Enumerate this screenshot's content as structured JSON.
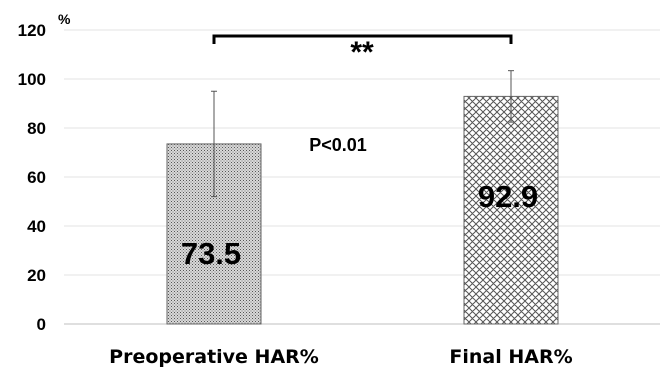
{
  "chart_data": {
    "type": "bar",
    "categories": [
      "Preoperative HAR%",
      "Final HAR%"
    ],
    "values": [
      73.5,
      92.9
    ],
    "error_bars": [
      21.5,
      10.5
    ],
    "value_labels": [
      "73.5",
      "92.9"
    ],
    "ylabel": "%",
    "ylim": [
      0,
      120
    ],
    "yticks": [
      0,
      20,
      40,
      60,
      80,
      100,
      120
    ],
    "grid": true,
    "annotations": {
      "significance": "**",
      "p_value": "P<0.01"
    },
    "bar_fill": [
      "dots",
      "crosshatch"
    ],
    "bar_color": "#666666"
  }
}
